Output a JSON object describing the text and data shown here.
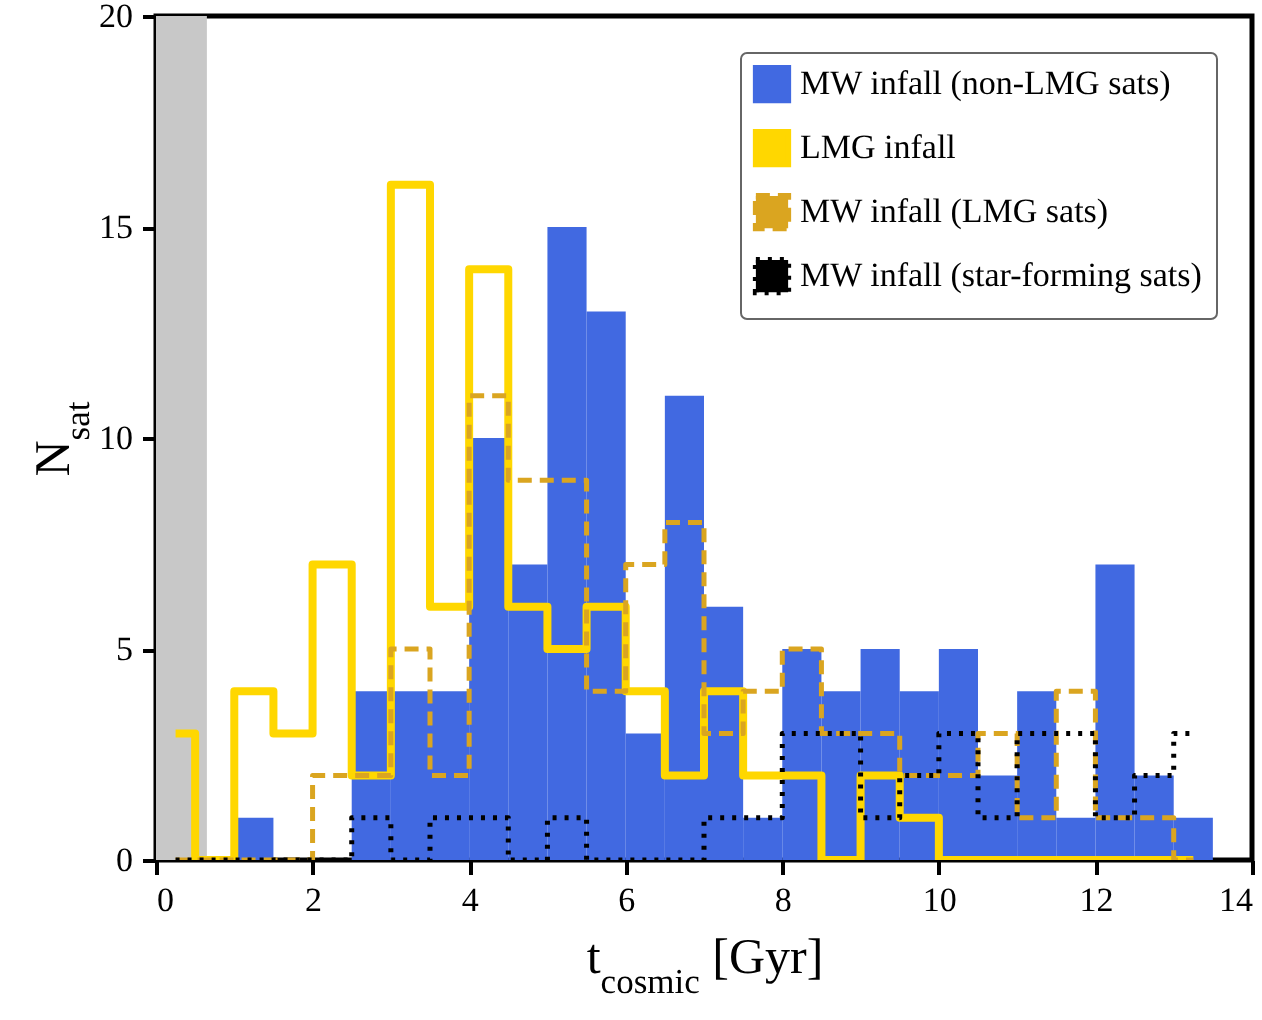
{
  "chart_data": {
    "type": "histogram",
    "xlabel": "t$_{cosmic}$ [Gyr]",
    "ylabel": "N$_{sat}$",
    "bins": [
      0,
      0.5,
      1,
      1.5,
      2,
      2.5,
      3,
      3.5,
      4,
      4.5,
      5,
      5.5,
      6,
      6.5,
      7,
      7.5,
      8,
      8.5,
      9,
      9.5,
      10,
      10.5,
      11,
      11.5,
      12,
      12.5,
      13,
      13.5
    ],
    "series": [
      {
        "name": "MW infall (non-LMG sats)",
        "color": "#4169e1",
        "values": [
          0,
          0,
          1,
          0,
          0,
          4,
          4,
          4,
          10,
          7,
          15,
          13,
          3,
          11,
          6,
          1,
          5,
          4,
          5,
          4,
          5,
          2,
          4,
          1,
          7,
          2,
          1
        ]
      },
      {
        "name": "LMG infall",
        "type": "step",
        "x": [
          0.25,
          0.75,
          1.25,
          1.75,
          2.25,
          2.75,
          3.25,
          3.75,
          4.25,
          4.75,
          5.25,
          5.75,
          6.25,
          6.75,
          7.25,
          7.75,
          8.25,
          8.75,
          9.25,
          9.75,
          10.25,
          10.75,
          11.25,
          11.75,
          12.25,
          12.75,
          13.25
        ],
        "line_style": "solid",
        "color": "#ffd700",
        "values": [
          3,
          0,
          4,
          3,
          7,
          2,
          16,
          6,
          14,
          6,
          5,
          6,
          4,
          2,
          4,
          2,
          2,
          0,
          2,
          1,
          0,
          0,
          0,
          0,
          0,
          0,
          0
        ]
      },
      {
        "name": "MW infall (LMG sats)",
        "type": "step",
        "x": [
          0.25,
          0.75,
          1.25,
          1.75,
          2.25,
          2.75,
          3.25,
          3.75,
          4.25,
          4.75,
          5.25,
          5.75,
          6.25,
          6.75,
          7.25,
          7.75,
          8.25,
          8.75,
          9.25,
          9.75,
          10.25,
          10.75,
          11.25,
          11.75,
          12.25,
          12.75,
          13.25
        ],
        "line_style": "dashed",
        "color": "#daa520",
        "values": [
          0,
          0,
          0,
          0,
          2,
          2,
          5,
          2,
          11,
          9,
          9,
          4,
          7,
          8,
          3,
          4,
          5,
          3,
          3,
          2,
          2,
          3,
          1,
          4,
          1,
          1,
          0
        ]
      },
      {
        "name": "MW infall (star-forming sats)",
        "type": "step",
        "x": [
          0.25,
          0.75,
          1.25,
          1.75,
          2.25,
          2.75,
          3.25,
          3.75,
          4.25,
          4.75,
          5.25,
          5.75,
          6.25,
          6.75,
          7.25,
          7.75,
          8.25,
          8.75,
          9.25,
          9.75,
          10.25,
          10.75,
          11.25,
          11.75,
          12.25,
          12.75,
          13.25
        ],
        "line_style": "dotted",
        "color": "#000000",
        "values": [
          0,
          0,
          0,
          0,
          0,
          1,
          0,
          1,
          1,
          0,
          1,
          0,
          0,
          0,
          1,
          1,
          3,
          3,
          1,
          2,
          3,
          1,
          3,
          3,
          1,
          2,
          3
        ]
      }
    ],
    "bands": [
      {
        "axis": "x",
        "from": 0,
        "to": 0.65,
        "color": "#c8c8c8"
      }
    ],
    "xlim": [
      0,
      14
    ],
    "xticks": [
      0,
      2,
      4,
      6,
      8,
      10,
      12,
      14
    ],
    "ylim": [
      0,
      20
    ],
    "yticks": [
      0,
      5,
      10,
      15,
      20
    ],
    "legend": "top right",
    "grid": false
  }
}
